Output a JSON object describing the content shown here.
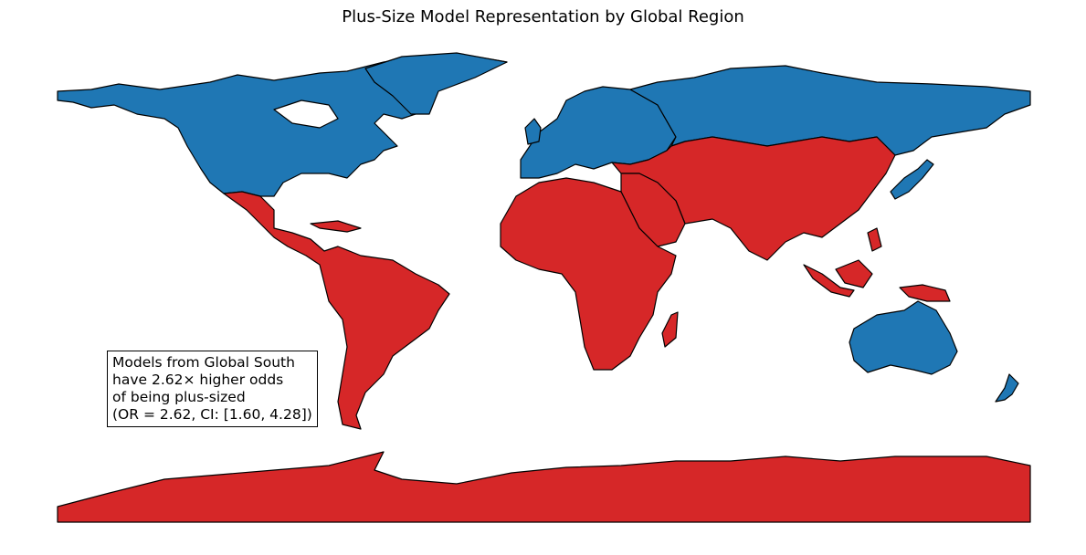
{
  "title": "Plus-Size Model Representation by Global Region",
  "colors": {
    "global_north": "#1f77b4",
    "global_south": "#d62728",
    "border": "#000000",
    "background": "#ffffff"
  },
  "regions": [
    {
      "name": "North America (US/Canada/Greenland)",
      "group": "global_north"
    },
    {
      "name": "Europe",
      "group": "global_north"
    },
    {
      "name": "Russia",
      "group": "global_north"
    },
    {
      "name": "Japan",
      "group": "global_north"
    },
    {
      "name": "Australia",
      "group": "global_north"
    },
    {
      "name": "New Zealand",
      "group": "global_north"
    },
    {
      "name": "Latin America",
      "group": "global_south"
    },
    {
      "name": "Africa",
      "group": "global_south"
    },
    {
      "name": "Middle East",
      "group": "global_south"
    },
    {
      "name": "Asia",
      "group": "global_south"
    },
    {
      "name": "Southeast Asia / Oceania Islands",
      "group": "global_south"
    },
    {
      "name": "Antarctica",
      "group": "global_south"
    }
  ],
  "annotation": {
    "lines": [
      "Models from Global South",
      "have 2.62× higher odds",
      "of being plus-sized",
      "(OR = 2.62, CI: [1.60, 4.28])"
    ]
  }
}
